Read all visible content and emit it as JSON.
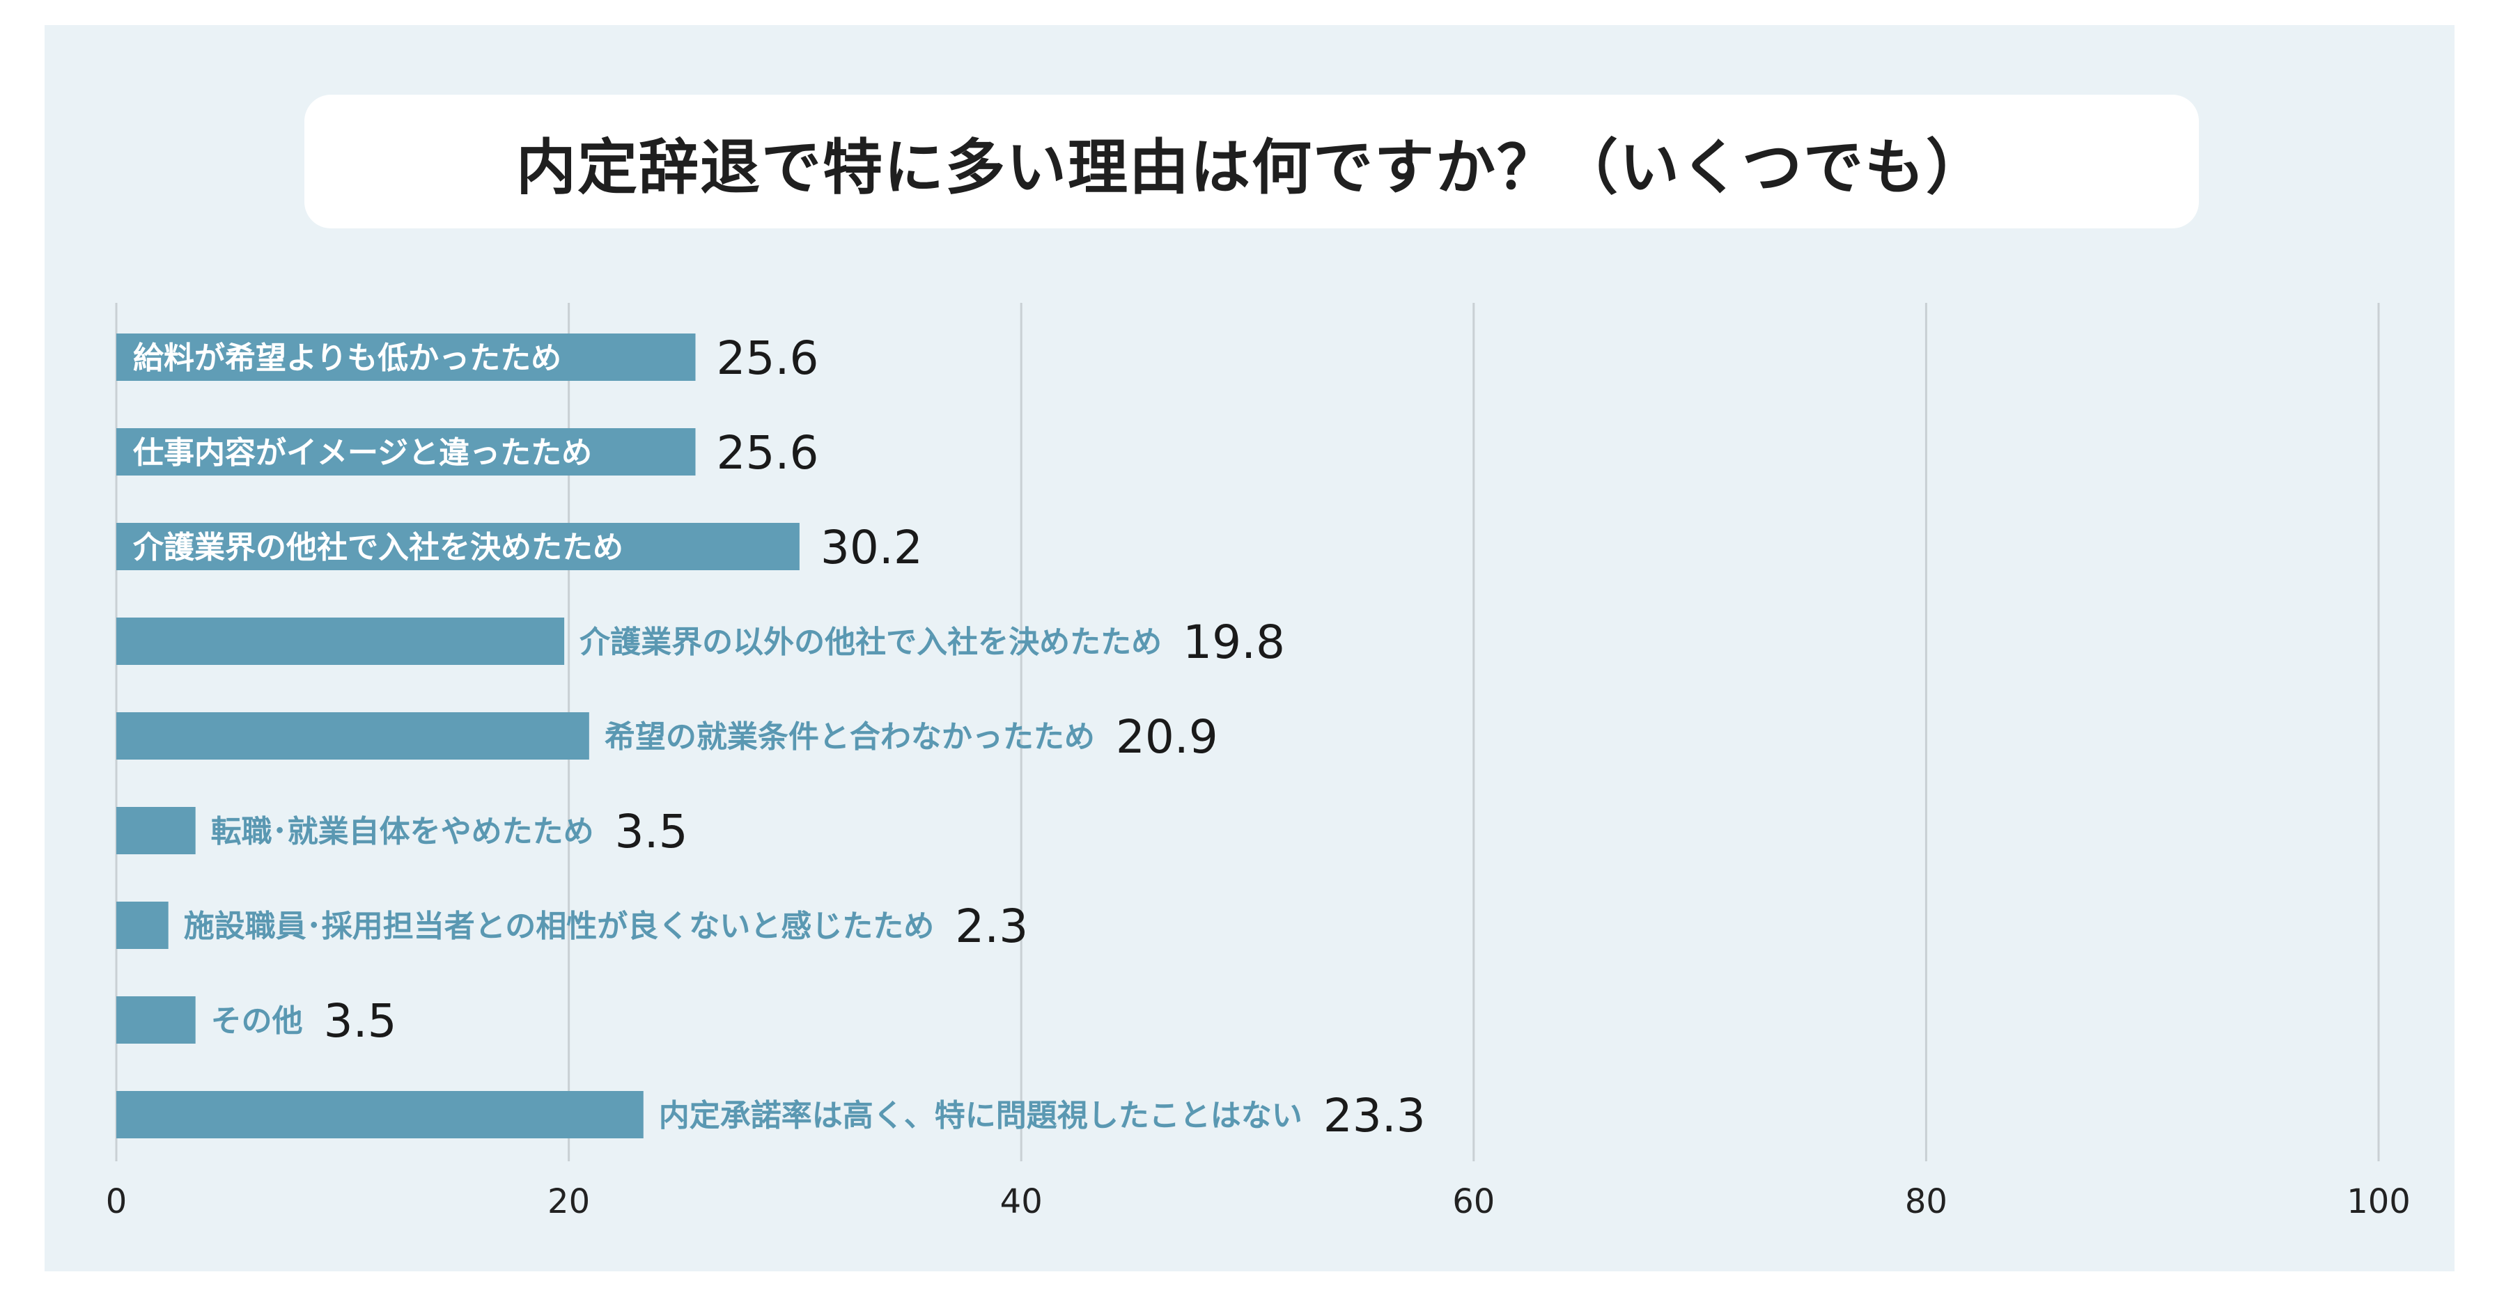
{
  "chart_data": {
    "type": "bar",
    "orientation": "horizontal",
    "title": "内定辞退で特に多い理由は何ですか？（いくつでも）",
    "categories": [
      "給料が希望よりも低かったため",
      "仕事内容がイメージと違ったため",
      "介護業界の他社で入社を決めたため",
      "介護業界の以外の他社で入社を決めたため",
      "希望の就業条件と合わなかったため",
      "転職･就業自体をやめたため",
      "施設職員･採用担当者との相性が良くないと感じたため",
      "その他",
      "内定承諾率は高く、特に問題視したことはない"
    ],
    "values": [
      25.6,
      25.6,
      30.2,
      19.8,
      20.9,
      3.5,
      2.3,
      3.5,
      23.3
    ],
    "value_labels": [
      "25.6",
      "25.6",
      "30.2",
      "19.8",
      "20.9",
      "3.5",
      "2.3",
      "3.5",
      "23.3"
    ],
    "xlim": [
      0,
      100
    ],
    "xticks": [
      "0",
      "20",
      "40",
      "60",
      "80",
      "100"
    ],
    "xlabel": "",
    "ylabel": "",
    "grid": true,
    "colors": {
      "bar": "#609db6",
      "label_outside": "#5a98b2",
      "panel": "#eaf2f6"
    }
  }
}
